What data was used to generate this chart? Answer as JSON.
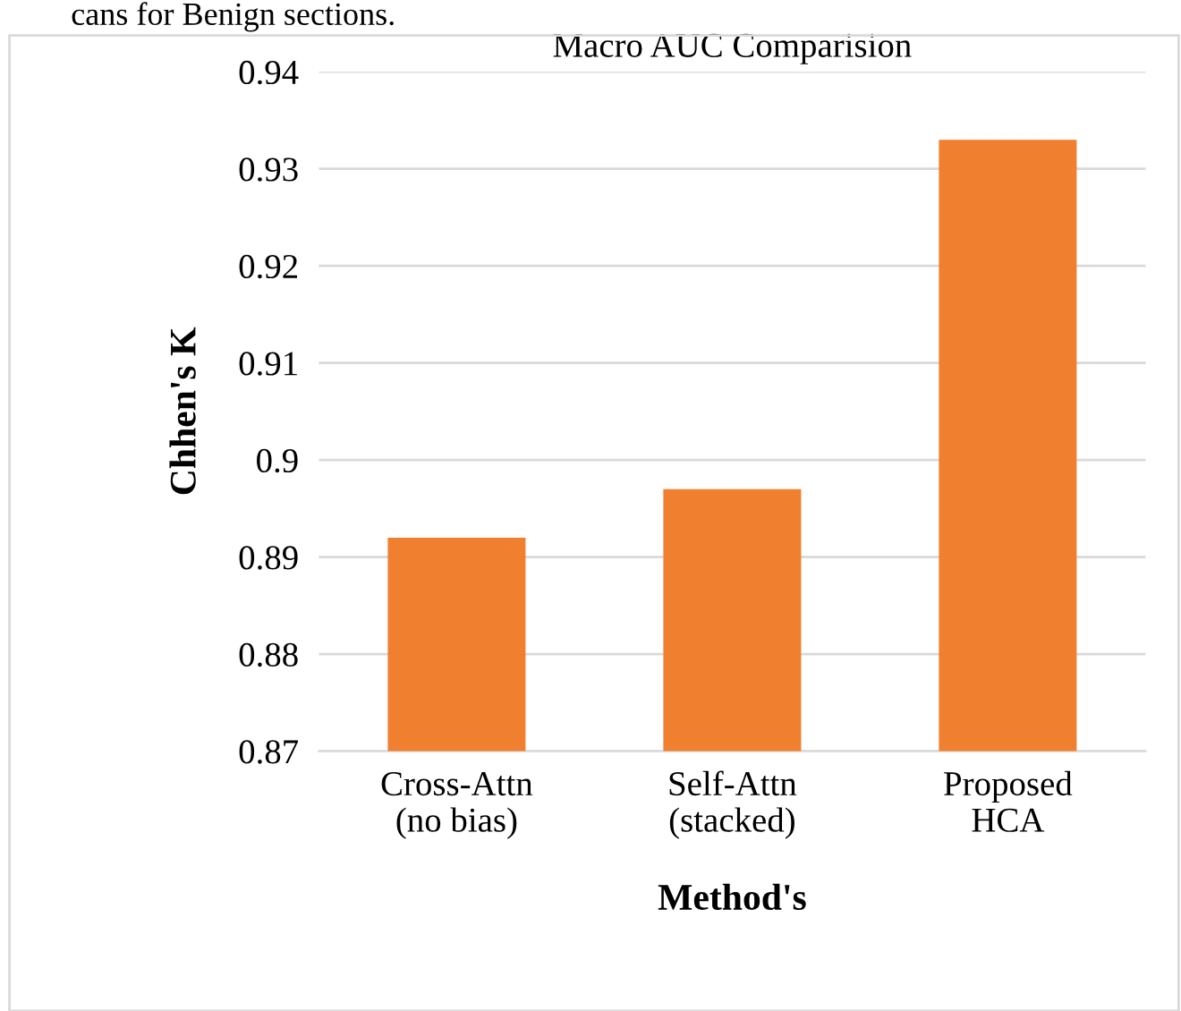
{
  "chart_data": {
    "type": "bar",
    "title": "Macro AUC Comparision",
    "xlabel": "Method's",
    "ylabel": "Chhen's K",
    "categories": [
      "Cross-Attn\n(no bias)",
      "Self-Attn\n(stacked)",
      "Proposed\nHCA"
    ],
    "values": [
      0.892,
      0.897,
      0.933
    ],
    "color": "#f07f30",
    "ylim": [
      0.87,
      0.94
    ],
    "yticks": [
      0.87,
      0.88,
      0.89,
      0.9,
      0.91,
      0.92,
      0.93,
      0.94
    ],
    "grid": "y",
    "annotations": [
      "cans for Benign sections."
    ]
  }
}
